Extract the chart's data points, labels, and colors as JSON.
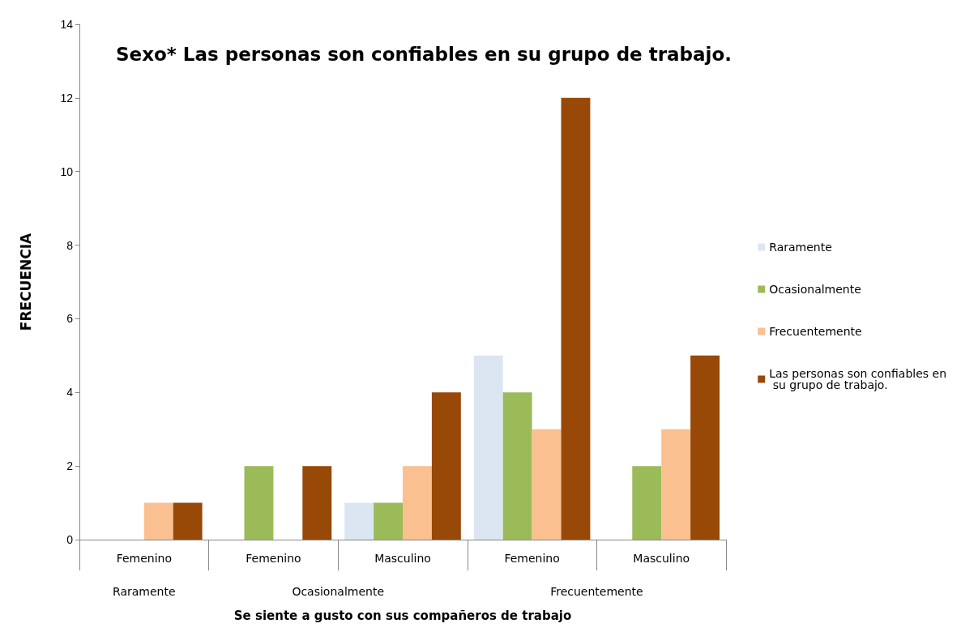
{
  "chart_data": {
    "type": "bar",
    "title": "Sexo* Las personas son confiables en su grupo de trabajo.",
    "xlabel": "Se siente a gusto con sus compañeros de trabajo",
    "ylabel": "FRECUENCIA",
    "categories": [
      "Femenino",
      "Femenino",
      "Masculino",
      "Femenino",
      "Masculino"
    ],
    "annotations": [
      "Raramente",
      "Ocasionalmente",
      "Frecuentemente"
    ],
    "series": [
      {
        "name": "Raramente",
        "color": "#dce6f2",
        "values": [
          null,
          null,
          1,
          5,
          null
        ]
      },
      {
        "name": "Ocasionalmente",
        "color": "#9bbb59",
        "values": [
          null,
          2,
          1,
          4,
          2
        ]
      },
      {
        "name": "Frecuentemente",
        "color": "#fac090",
        "values": [
          1,
          null,
          2,
          3,
          3
        ]
      },
      {
        "name": "Las personas son confiables en su grupo de trabajo.",
        "color": "#984807",
        "values": [
          1,
          2,
          4,
          12,
          5
        ]
      }
    ],
    "ylim": [
      0,
      14
    ],
    "yticks": [
      0,
      2,
      4,
      6,
      8,
      10,
      12,
      14
    ],
    "grid": false,
    "legend": "right"
  }
}
